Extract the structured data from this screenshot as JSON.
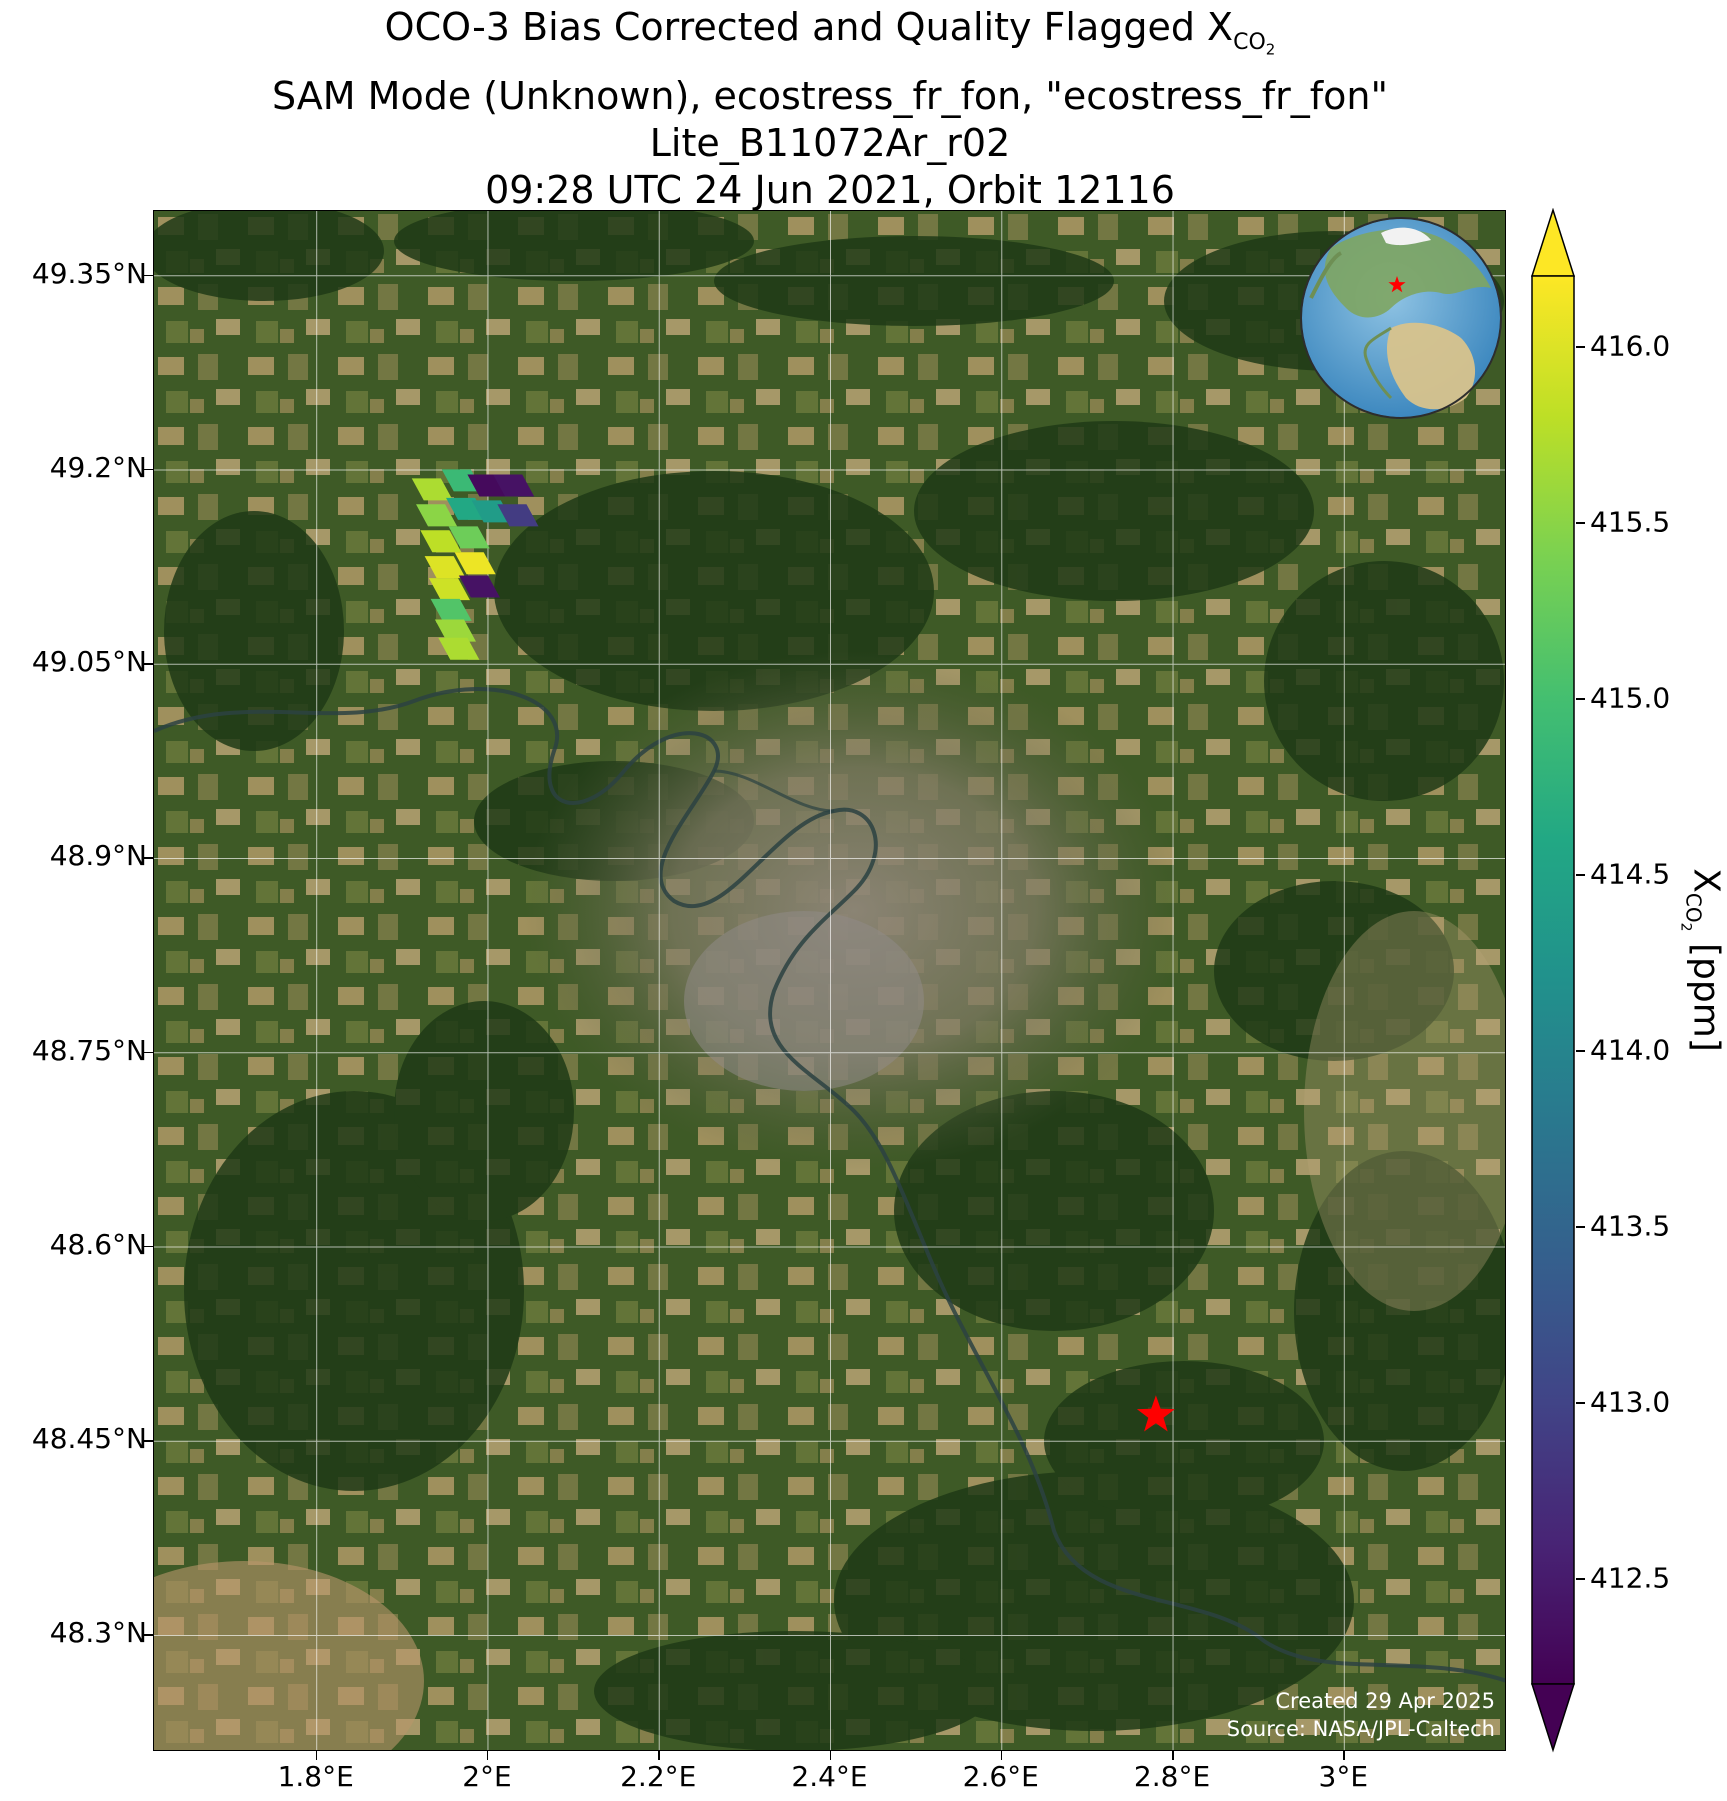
{
  "title": {
    "line1_prefix": "OCO-3 Bias Corrected and Quality Flagged X",
    "line1_sub": "CO",
    "line1_subsub": "2",
    "line2": "SAM Mode (Unknown), ecostress_fr_fon, \"ecostress_fr_fon\"",
    "line3": "Lite_B11072Ar_r02",
    "line4": "09:28 UTC 24 Jun 2021, Orbit 12116"
  },
  "map": {
    "lat_labels": [
      "49.35°N",
      "49.2°N",
      "49.05°N",
      "48.9°N",
      "48.75°N",
      "48.6°N",
      "48.45°N",
      "48.3°N"
    ],
    "lon_labels": [
      "1.8°E",
      "2°E",
      "2.2°E",
      "2.4°E",
      "2.6°E",
      "2.8°E",
      "3°E"
    ],
    "target_marker": {
      "lon": 2.78,
      "lat": 48.47,
      "color": "#ff0000",
      "icon": "star"
    },
    "credit_line1": "Created 29 Apr 2025",
    "credit_line2": "Source: NASA/JPL-Caltech"
  },
  "inset_globe": {
    "icon": "globe-icon",
    "marker_icon": "star",
    "marker_color": "#ff0000"
  },
  "colorbar": {
    "tick_labels": [
      "416.0",
      "415.5",
      "415.0",
      "414.5",
      "414.0",
      "413.5",
      "413.0",
      "412.5"
    ],
    "label_prefix": "X",
    "label_sub": "CO",
    "label_subsub": "2",
    "label_suffix": " [ppm]",
    "colormap": "viridis",
    "extend": "both"
  },
  "chart_data": {
    "type": "scatter",
    "description_units": "XCO2 soundings (lon, lat, value in ppm)",
    "xlim": [
      1.61,
      3.19
    ],
    "ylim": [
      48.21,
      49.4
    ],
    "clim": [
      412.2,
      416.2
    ],
    "x_ticks": [
      1.8,
      2.0,
      2.2,
      2.4,
      2.6,
      2.8,
      3.0
    ],
    "y_ticks": [
      49.35,
      49.2,
      49.05,
      48.9,
      48.75,
      48.6,
      48.45,
      48.3
    ],
    "points": [
      {
        "lon": 1.935,
        "lat": 49.185,
        "value": 415.7
      },
      {
        "lon": 1.97,
        "lat": 49.192,
        "value": 414.9
      },
      {
        "lon": 2.0,
        "lat": 49.188,
        "value": 412.3
      },
      {
        "lon": 2.03,
        "lat": 49.188,
        "value": 412.4
      },
      {
        "lon": 1.94,
        "lat": 49.165,
        "value": 415.5
      },
      {
        "lon": 1.975,
        "lat": 49.17,
        "value": 414.6
      },
      {
        "lon": 2.005,
        "lat": 49.168,
        "value": 414.4
      },
      {
        "lon": 2.035,
        "lat": 49.165,
        "value": 412.9
      },
      {
        "lon": 1.945,
        "lat": 49.145,
        "value": 415.8
      },
      {
        "lon": 1.978,
        "lat": 49.148,
        "value": 415.3
      },
      {
        "lon": 1.95,
        "lat": 49.125,
        "value": 416.0
      },
      {
        "lon": 1.985,
        "lat": 49.128,
        "value": 416.1
      },
      {
        "lon": 1.955,
        "lat": 49.108,
        "value": 415.9
      },
      {
        "lon": 1.99,
        "lat": 49.11,
        "value": 412.4
      },
      {
        "lon": 1.957,
        "lat": 49.092,
        "value": 415.1
      },
      {
        "lon": 1.962,
        "lat": 49.076,
        "value": 415.6
      },
      {
        "lon": 1.966,
        "lat": 49.062,
        "value": 415.7
      }
    ]
  }
}
